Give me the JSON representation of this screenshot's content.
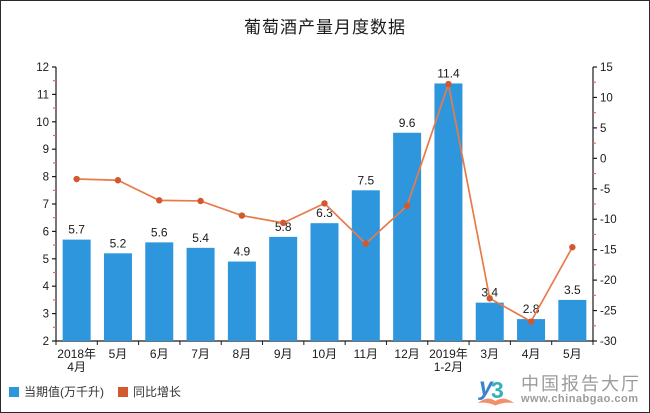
{
  "chart_data": {
    "type": "combo",
    "title": "葡萄酒产量月度数据",
    "categories": [
      "2018年\n4月",
      "5月",
      "6月",
      "7月",
      "8月",
      "9月",
      "10月",
      "11月",
      "12月",
      "2019年\n1-2月",
      "3月",
      "4月",
      "5月"
    ],
    "series": [
      {
        "name": "当期值(万千升)",
        "type": "bar",
        "axis": "left",
        "color": "#2E96DC",
        "values": [
          5.7,
          5.2,
          5.6,
          5.4,
          4.9,
          5.8,
          6.3,
          7.5,
          9.6,
          11.4,
          3.4,
          2.8,
          3.5
        ]
      },
      {
        "name": "同比增长",
        "type": "line",
        "axis": "right",
        "color": "#E87A4B",
        "marker_color": "#D2592F",
        "values": [
          -3.4,
          -3.6,
          -6.9,
          -7.0,
          -9.4,
          -10.6,
          -7.4,
          -14.0,
          -7.8,
          12.2,
          -23.0,
          -26.8,
          -14.6
        ]
      }
    ],
    "left_axis": {
      "min": 2,
      "max": 12,
      "step": 1,
      "minor_step": 0.5
    },
    "right_axis": {
      "min": -30,
      "max": 15,
      "step": 5,
      "minor_step": 2.5
    },
    "axis_color": "#1a1a1a",
    "minor_tick_color": "#E06A5A",
    "grid": "off",
    "legend_position": "bottom-left",
    "bar_value_labels_decimals": 1
  },
  "watermark": {
    "name": "中国报告大厅",
    "url": "www.chinabgao.com",
    "text_color": "#9B9B9B",
    "logo": {
      "glyph_y": "y",
      "glyph_3": "3",
      "y_color": "#3D85C8",
      "three_color": "#35AFBE",
      "book_color": "#F2906B"
    }
  }
}
